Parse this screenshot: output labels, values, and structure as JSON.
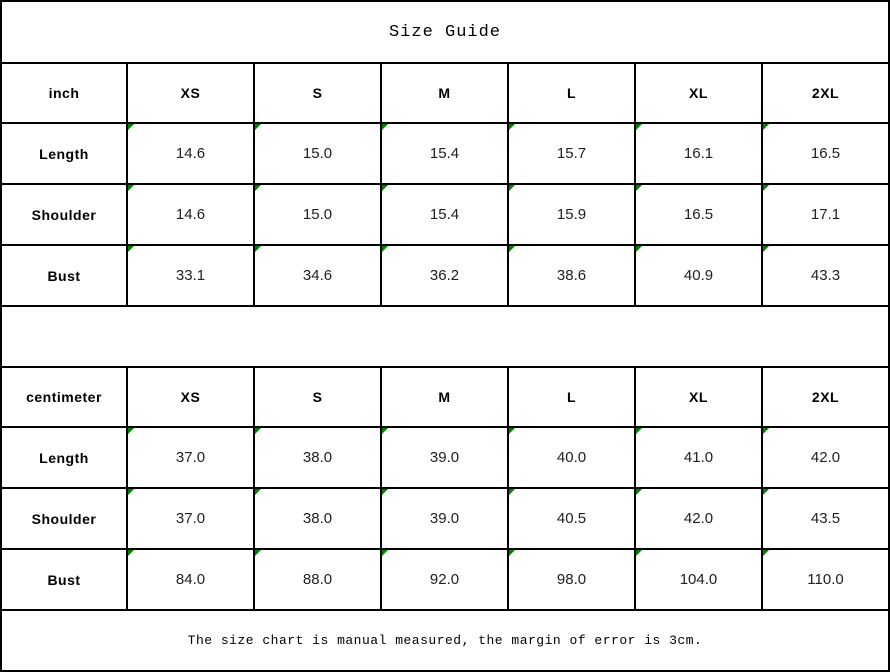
{
  "title": "Size Guide",
  "footer_note": "The size chart is manual measured, the margin of error is 3cm.",
  "colors": {
    "border": "#000000",
    "cell_flag_green": "#008000",
    "value_text": "#212121"
  },
  "tables": [
    {
      "unit": "inch",
      "sizes": [
        "XS",
        "S",
        "M",
        "L",
        "XL",
        "2XL"
      ],
      "rows": [
        {
          "label": "Length",
          "values": [
            "14.6",
            "15.0",
            "15.4",
            "15.7",
            "16.1",
            "16.5"
          ]
        },
        {
          "label": "Shoulder",
          "values": [
            "14.6",
            "15.0",
            "15.4",
            "15.9",
            "16.5",
            "17.1"
          ]
        },
        {
          "label": "Bust",
          "values": [
            "33.1",
            "34.6",
            "36.2",
            "38.6",
            "40.9",
            "43.3"
          ]
        }
      ]
    },
    {
      "unit": "centimeter",
      "sizes": [
        "XS",
        "S",
        "M",
        "L",
        "XL",
        "2XL"
      ],
      "rows": [
        {
          "label": "Length",
          "values": [
            "37.0",
            "38.0",
            "39.0",
            "40.0",
            "41.0",
            "42.0"
          ]
        },
        {
          "label": "Shoulder",
          "values": [
            "37.0",
            "38.0",
            "39.0",
            "40.5",
            "42.0",
            "43.5"
          ]
        },
        {
          "label": "Bust",
          "values": [
            "84.0",
            "88.0",
            "92.0",
            "98.0",
            "104.0",
            "110.0"
          ]
        }
      ]
    }
  ]
}
